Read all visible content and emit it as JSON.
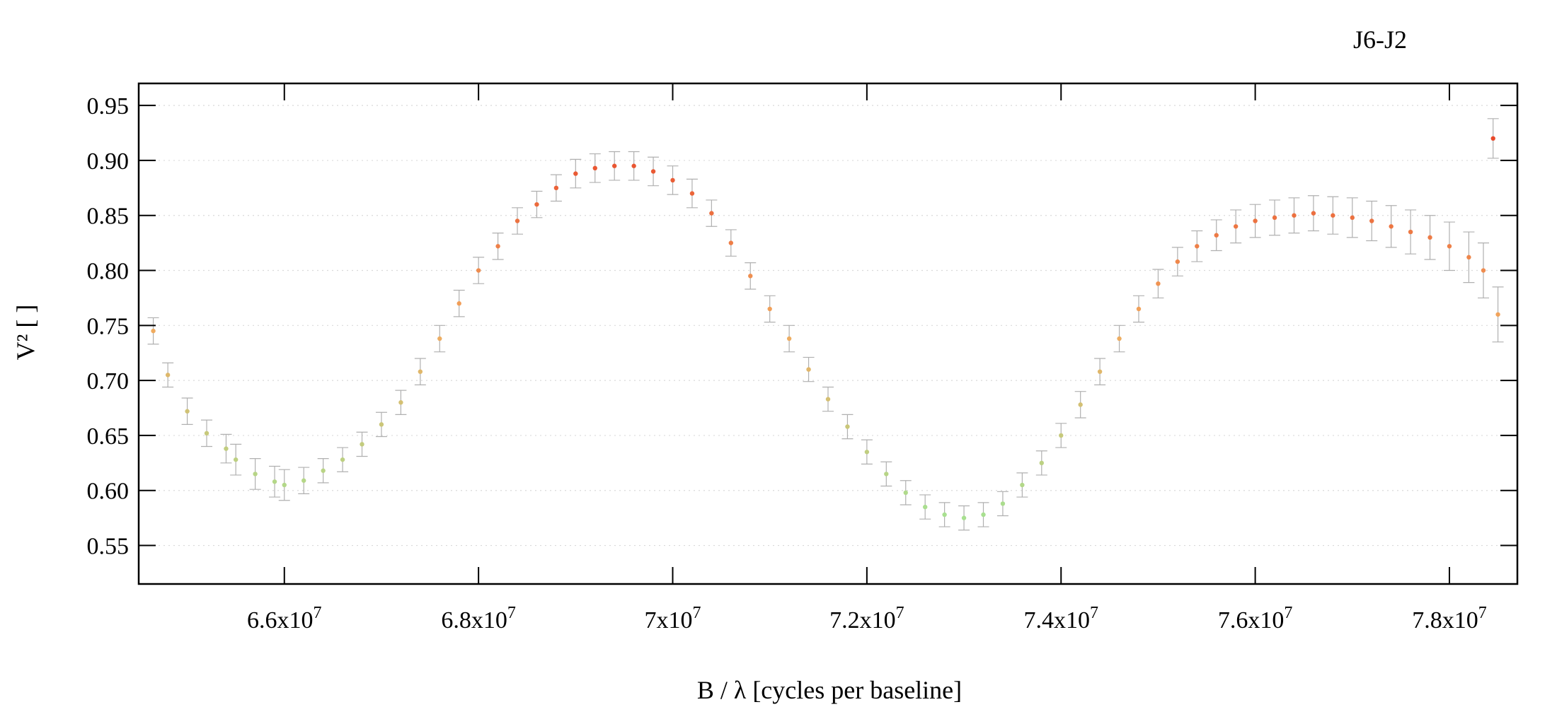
{
  "chart_data": {
    "type": "scatter",
    "title": "J6-J2",
    "xlabel": "B / λ [cycles per baseline]",
    "ylabel": "V² [ ]",
    "xlim": [
      64500000,
      78700000
    ],
    "ylim": [
      0.515,
      0.97
    ],
    "x_ticks": [
      {
        "value": 66000000,
        "mantissa": "6.6",
        "exponent": "7"
      },
      {
        "value": 68000000,
        "mantissa": "6.8",
        "exponent": "7"
      },
      {
        "value": 70000000,
        "mantissa": "7",
        "exponent": "7"
      },
      {
        "value": 72000000,
        "mantissa": "7.2",
        "exponent": "7"
      },
      {
        "value": 74000000,
        "mantissa": "7.4",
        "exponent": "7"
      },
      {
        "value": 76000000,
        "mantissa": "7.6",
        "exponent": "7"
      },
      {
        "value": 78000000,
        "mantissa": "7.8",
        "exponent": "7"
      }
    ],
    "y_ticks": [
      {
        "value": 0.55,
        "label": "0.55"
      },
      {
        "value": 0.6,
        "label": "0.60"
      },
      {
        "value": 0.65,
        "label": "0.65"
      },
      {
        "value": 0.7,
        "label": "0.70"
      },
      {
        "value": 0.75,
        "label": "0.75"
      },
      {
        "value": 0.8,
        "label": "0.80"
      },
      {
        "value": 0.85,
        "label": "0.85"
      },
      {
        "value": 0.9,
        "label": "0.90"
      },
      {
        "value": 0.95,
        "label": "0.95"
      }
    ],
    "grid": {
      "horizontal": true,
      "vertical": false,
      "style": "dotted"
    },
    "error_bars": true,
    "color_by_value": {
      "low": "#a8e090",
      "mid": "#f2a95e",
      "high": "#e8482a"
    },
    "error_bar_color": "#b0b0b0",
    "series": [
      {
        "points": [
          [
            64650000,
            0.745,
            0.012
          ],
          [
            64800000,
            0.705,
            0.011
          ],
          [
            65000000,
            0.672,
            0.012
          ],
          [
            65200000,
            0.652,
            0.012
          ],
          [
            65400000,
            0.638,
            0.013
          ],
          [
            65500000,
            0.628,
            0.014
          ],
          [
            65700000,
            0.615,
            0.014
          ],
          [
            65900000,
            0.608,
            0.014
          ],
          [
            66000000,
            0.605,
            0.014
          ],
          [
            66200000,
            0.609,
            0.012
          ],
          [
            66400000,
            0.618,
            0.011
          ],
          [
            66600000,
            0.628,
            0.011
          ],
          [
            66800000,
            0.642,
            0.011
          ],
          [
            67000000,
            0.66,
            0.011
          ],
          [
            67200000,
            0.68,
            0.011
          ],
          [
            67400000,
            0.708,
            0.012
          ],
          [
            67600000,
            0.738,
            0.012
          ],
          [
            67800000,
            0.77,
            0.012
          ],
          [
            68000000,
            0.8,
            0.012
          ],
          [
            68200000,
            0.822,
            0.012
          ],
          [
            68400000,
            0.845,
            0.012
          ],
          [
            68600000,
            0.86,
            0.012
          ],
          [
            68800000,
            0.875,
            0.012
          ],
          [
            69000000,
            0.888,
            0.013
          ],
          [
            69200000,
            0.893,
            0.013
          ],
          [
            69400000,
            0.895,
            0.013
          ],
          [
            69600000,
            0.895,
            0.013
          ],
          [
            69800000,
            0.89,
            0.013
          ],
          [
            70000000,
            0.882,
            0.013
          ],
          [
            70200000,
            0.87,
            0.013
          ],
          [
            70400000,
            0.852,
            0.012
          ],
          [
            70600000,
            0.825,
            0.012
          ],
          [
            70800000,
            0.795,
            0.012
          ],
          [
            71000000,
            0.765,
            0.012
          ],
          [
            71200000,
            0.738,
            0.012
          ],
          [
            71400000,
            0.71,
            0.011
          ],
          [
            71600000,
            0.683,
            0.011
          ],
          [
            71800000,
            0.658,
            0.011
          ],
          [
            72000000,
            0.635,
            0.011
          ],
          [
            72200000,
            0.615,
            0.011
          ],
          [
            72400000,
            0.598,
            0.011
          ],
          [
            72600000,
            0.585,
            0.011
          ],
          [
            72800000,
            0.578,
            0.011
          ],
          [
            73000000,
            0.575,
            0.011
          ],
          [
            73200000,
            0.578,
            0.011
          ],
          [
            73400000,
            0.588,
            0.011
          ],
          [
            73600000,
            0.605,
            0.011
          ],
          [
            73800000,
            0.625,
            0.011
          ],
          [
            74000000,
            0.65,
            0.011
          ],
          [
            74200000,
            0.678,
            0.012
          ],
          [
            74400000,
            0.708,
            0.012
          ],
          [
            74600000,
            0.738,
            0.012
          ],
          [
            74800000,
            0.765,
            0.012
          ],
          [
            75000000,
            0.788,
            0.013
          ],
          [
            75200000,
            0.808,
            0.013
          ],
          [
            75400000,
            0.822,
            0.014
          ],
          [
            75600000,
            0.832,
            0.014
          ],
          [
            75800000,
            0.84,
            0.015
          ],
          [
            76000000,
            0.845,
            0.015
          ],
          [
            76200000,
            0.848,
            0.016
          ],
          [
            76400000,
            0.85,
            0.016
          ],
          [
            76600000,
            0.852,
            0.016
          ],
          [
            76800000,
            0.85,
            0.017
          ],
          [
            77000000,
            0.848,
            0.018
          ],
          [
            77200000,
            0.845,
            0.018
          ],
          [
            77400000,
            0.84,
            0.019
          ],
          [
            77600000,
            0.835,
            0.02
          ],
          [
            77800000,
            0.83,
            0.02
          ],
          [
            78000000,
            0.822,
            0.022
          ],
          [
            78200000,
            0.812,
            0.023
          ],
          [
            78350000,
            0.8,
            0.025
          ],
          [
            78450000,
            0.92,
            0.018
          ],
          [
            78500000,
            0.76,
            0.025
          ]
        ]
      }
    ]
  }
}
